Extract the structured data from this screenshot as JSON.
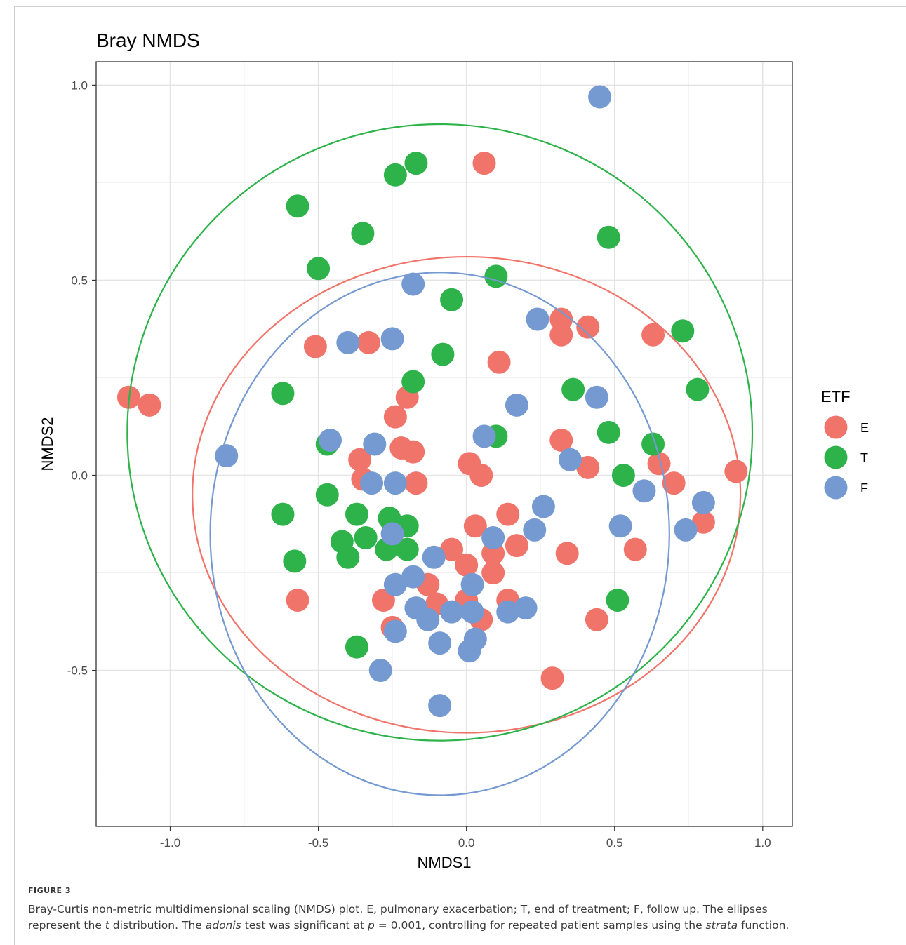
{
  "chart_data": {
    "type": "scatter",
    "title": "Bray NMDS",
    "xlabel": "NMDS1",
    "ylabel": "NMDS2",
    "xlim": [
      -1.25,
      1.1
    ],
    "ylim": [
      -0.9,
      1.06
    ],
    "x_ticks": [
      -1.0,
      -0.5,
      0.0,
      0.5,
      1.0
    ],
    "x_tick_labels": [
      "-1.0",
      "-0.5",
      "0.0",
      "0.5",
      "1.0"
    ],
    "y_ticks": [
      -0.5,
      0.0,
      0.5,
      1.0
    ],
    "y_tick_labels": [
      "-0.5",
      "0.0",
      "0.5",
      "1.0"
    ],
    "grid": true,
    "legend": {
      "title": "ETF",
      "position": "right"
    },
    "series": [
      {
        "name": "E",
        "color": "#F1746A",
        "points": [
          [
            -1.14,
            0.2
          ],
          [
            -1.07,
            0.18
          ],
          [
            0.06,
            0.8
          ],
          [
            -0.51,
            0.33
          ],
          [
            -0.33,
            0.34
          ],
          [
            0.32,
            0.4
          ],
          [
            0.32,
            0.36
          ],
          [
            0.41,
            0.38
          ],
          [
            0.63,
            0.36
          ],
          [
            0.11,
            0.29
          ],
          [
            -0.2,
            0.2
          ],
          [
            -0.24,
            0.15
          ],
          [
            -0.22,
            0.07
          ],
          [
            -0.18,
            0.06
          ],
          [
            -0.36,
            0.04
          ],
          [
            -0.35,
            -0.01
          ],
          [
            -0.17,
            -0.02
          ],
          [
            0.01,
            0.03
          ],
          [
            0.05,
            0.0
          ],
          [
            0.32,
            0.09
          ],
          [
            0.41,
            0.02
          ],
          [
            0.65,
            0.03
          ],
          [
            0.7,
            -0.02
          ],
          [
            0.91,
            0.01
          ],
          [
            0.8,
            -0.12
          ],
          [
            0.14,
            -0.1
          ],
          [
            0.03,
            -0.13
          ],
          [
            0.17,
            -0.18
          ],
          [
            0.09,
            -0.2
          ],
          [
            0.34,
            -0.2
          ],
          [
            0.57,
            -0.19
          ],
          [
            -0.05,
            -0.19
          ],
          [
            0.0,
            -0.23
          ],
          [
            0.09,
            -0.25
          ],
          [
            -0.13,
            -0.28
          ],
          [
            -0.57,
            -0.32
          ],
          [
            -0.28,
            -0.32
          ],
          [
            -0.1,
            -0.33
          ],
          [
            0.0,
            -0.32
          ],
          [
            0.14,
            -0.32
          ],
          [
            -0.25,
            -0.39
          ],
          [
            0.05,
            -0.37
          ],
          [
            0.44,
            -0.37
          ],
          [
            0.29,
            -0.52
          ]
        ]
      },
      {
        "name": "T",
        "color": "#2DB34A",
        "points": [
          [
            -0.17,
            0.8
          ],
          [
            -0.24,
            0.77
          ],
          [
            -0.57,
            0.69
          ],
          [
            -0.35,
            0.62
          ],
          [
            0.48,
            0.61
          ],
          [
            -0.5,
            0.53
          ],
          [
            0.1,
            0.51
          ],
          [
            -0.05,
            0.45
          ],
          [
            0.73,
            0.37
          ],
          [
            -0.08,
            0.31
          ],
          [
            -0.62,
            0.21
          ],
          [
            -0.18,
            0.24
          ],
          [
            0.36,
            0.22
          ],
          [
            0.78,
            0.22
          ],
          [
            0.48,
            0.11
          ],
          [
            -0.47,
            0.08
          ],
          [
            0.1,
            0.1
          ],
          [
            0.63,
            0.08
          ],
          [
            0.53,
            0.0
          ],
          [
            -0.47,
            -0.05
          ],
          [
            -0.62,
            -0.1
          ],
          [
            -0.37,
            -0.1
          ],
          [
            -0.26,
            -0.11
          ],
          [
            -0.2,
            -0.13
          ],
          [
            -0.42,
            -0.17
          ],
          [
            -0.34,
            -0.16
          ],
          [
            -0.27,
            -0.19
          ],
          [
            -0.2,
            -0.19
          ],
          [
            -0.4,
            -0.21
          ],
          [
            -0.58,
            -0.22
          ],
          [
            0.51,
            -0.32
          ],
          [
            -0.37,
            -0.44
          ]
        ]
      },
      {
        "name": "F",
        "color": "#7599D1",
        "points": [
          [
            0.45,
            0.97
          ],
          [
            -0.18,
            0.49
          ],
          [
            0.24,
            0.4
          ],
          [
            -0.4,
            0.34
          ],
          [
            -0.25,
            0.35
          ],
          [
            0.17,
            0.18
          ],
          [
            0.44,
            0.2
          ],
          [
            -0.46,
            0.09
          ],
          [
            -0.31,
            0.08
          ],
          [
            0.06,
            0.1
          ],
          [
            -0.81,
            0.05
          ],
          [
            0.35,
            0.04
          ],
          [
            -0.32,
            -0.02
          ],
          [
            -0.24,
            -0.02
          ],
          [
            0.6,
            -0.04
          ],
          [
            0.8,
            -0.07
          ],
          [
            0.26,
            -0.08
          ],
          [
            0.23,
            -0.14
          ],
          [
            0.52,
            -0.13
          ],
          [
            0.74,
            -0.14
          ],
          [
            0.09,
            -0.16
          ],
          [
            -0.25,
            -0.15
          ],
          [
            -0.11,
            -0.21
          ],
          [
            -0.18,
            -0.26
          ],
          [
            -0.24,
            -0.28
          ],
          [
            0.02,
            -0.28
          ],
          [
            -0.17,
            -0.34
          ],
          [
            -0.13,
            -0.37
          ],
          [
            -0.05,
            -0.35
          ],
          [
            0.02,
            -0.35
          ],
          [
            0.14,
            -0.35
          ],
          [
            0.2,
            -0.34
          ],
          [
            -0.24,
            -0.4
          ],
          [
            -0.09,
            -0.43
          ],
          [
            0.03,
            -0.42
          ],
          [
            0.01,
            -0.45
          ],
          [
            -0.29,
            -0.5
          ],
          [
            -0.09,
            -0.59
          ]
        ]
      }
    ],
    "ellipses": [
      {
        "series": "E",
        "color": "#F1746A",
        "center": [
          0.0,
          -0.05
        ],
        "rx": 0.925,
        "ry": 0.61
      },
      {
        "series": "T",
        "color": "#2DB34A",
        "center": [
          -0.09,
          0.11
        ],
        "rx": 1.055,
        "ry": 0.79
      },
      {
        "series": "F",
        "color": "#7599D1",
        "center": [
          -0.09,
          -0.15
        ],
        "rx": 0.775,
        "ry": 0.67
      }
    ]
  },
  "caption": {
    "figure_label": "FIGURE 3",
    "line1_a": "Bray-Curtis non-metric multidimensional scaling (NMDS) plot. E, pulmonary exacerbation; T, end of treatment; F, follow up. The ellipses",
    "line2_a": "represent the ",
    "line2_t": "t",
    "line2_b": " distribution. The ",
    "line2_adonis": "adonis",
    "line2_c": " test was significant at ",
    "line2_p": "p",
    "line2_d": " = 0.001, controlling for repeated patient samples using the ",
    "line2_strata": "strata",
    "line2_e": " function."
  }
}
